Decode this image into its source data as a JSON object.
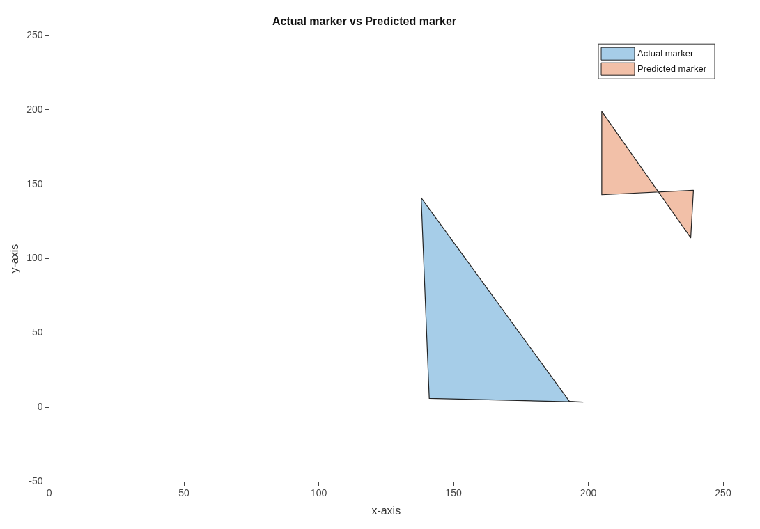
{
  "chart_data": {
    "type": "area",
    "title": "Actual marker vs Predicted marker",
    "xlabel": "x-axis",
    "ylabel": "y-axis",
    "xlim": [
      0,
      250
    ],
    "ylim": [
      -50,
      250
    ],
    "xticks": [
      0,
      50,
      100,
      150,
      200,
      250
    ],
    "yticks": [
      -50,
      0,
      50,
      100,
      150,
      200,
      250
    ],
    "grid": false,
    "legend": "top right",
    "marker": "none",
    "series": [
      {
        "name": "Actual marker",
        "color": "#a6cde8",
        "x": [
          138,
          141,
          198,
          193
        ],
        "values": [
          141,
          6,
          3.5,
          4
        ]
      },
      {
        "name": "Predicted marker",
        "color": "#f2c0a8",
        "x": [
          205,
          205,
          239,
          238
        ],
        "values": [
          199,
          143,
          146,
          114
        ]
      }
    ]
  }
}
